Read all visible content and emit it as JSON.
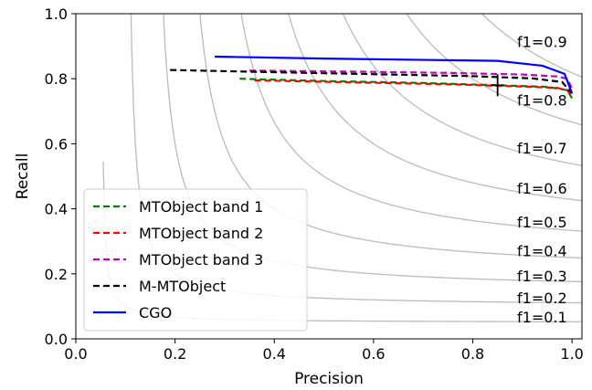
{
  "chart_data": {
    "type": "line",
    "xlabel": "Precision",
    "ylabel": "Recall",
    "xlim": [
      0.0,
      1.02
    ],
    "ylim": [
      0.0,
      1.0
    ],
    "xticks": [
      "0.0",
      "0.2",
      "0.4",
      "0.6",
      "0.8",
      "1.0"
    ],
    "yticks": [
      "0.0",
      "0.2",
      "0.4",
      "0.6",
      "0.8",
      "1.0"
    ],
    "grid": false,
    "legend_position": "lower-left",
    "iso_f1": {
      "values": [
        0.1,
        0.2,
        0.3,
        0.4,
        0.5,
        0.6,
        0.7,
        0.8,
        0.9
      ],
      "labels": [
        "f1=0.1",
        "f1=0.2",
        "f1=0.3",
        "f1=0.4",
        "f1=0.5",
        "f1=0.6",
        "f1=0.7",
        "f1=0.8",
        "f1=0.9"
      ],
      "color": "#bbbbbb"
    },
    "series": [
      {
        "name": "MTObject band 1",
        "color": "#008000",
        "dash": "dashed",
        "points": [
          [
            0.33,
            0.8
          ],
          [
            0.5,
            0.793
          ],
          [
            0.7,
            0.787
          ],
          [
            0.85,
            0.78
          ],
          [
            0.95,
            0.775
          ],
          [
            0.99,
            0.765
          ],
          [
            1.0,
            0.74
          ]
        ]
      },
      {
        "name": "MTObject band 2",
        "color": "#ff0000",
        "dash": "dashed",
        "points": [
          [
            0.36,
            0.795
          ],
          [
            0.55,
            0.789
          ],
          [
            0.75,
            0.783
          ],
          [
            0.9,
            0.776
          ],
          [
            0.97,
            0.772
          ],
          [
            0.99,
            0.765
          ],
          [
            1.0,
            0.745
          ]
        ]
      },
      {
        "name": "MTObject band 3",
        "color": "#bf00bf",
        "dash": "dashed",
        "points": [
          [
            0.35,
            0.825
          ],
          [
            0.55,
            0.822
          ],
          [
            0.75,
            0.818
          ],
          [
            0.9,
            0.813
          ],
          [
            0.97,
            0.807
          ],
          [
            0.99,
            0.8
          ],
          [
            1.0,
            0.77
          ]
        ]
      },
      {
        "name": "M-MTObject",
        "color": "#000000",
        "dash": "dashed",
        "points": [
          [
            0.19,
            0.827
          ],
          [
            0.4,
            0.82
          ],
          [
            0.6,
            0.814
          ],
          [
            0.8,
            0.808
          ],
          [
            0.92,
            0.801
          ],
          [
            0.98,
            0.79
          ],
          [
            1.0,
            0.755
          ]
        ]
      },
      {
        "name": "CGO",
        "color": "#0000ff",
        "dash": "solid",
        "points": [
          [
            0.28,
            0.868
          ],
          [
            0.5,
            0.862
          ],
          [
            0.7,
            0.858
          ],
          [
            0.85,
            0.855
          ],
          [
            0.94,
            0.84
          ],
          [
            0.985,
            0.815
          ],
          [
            1.0,
            0.755
          ]
        ]
      }
    ],
    "marker": {
      "x": 0.85,
      "y": 0.78,
      "shape": "plus",
      "color": "#000000"
    }
  }
}
